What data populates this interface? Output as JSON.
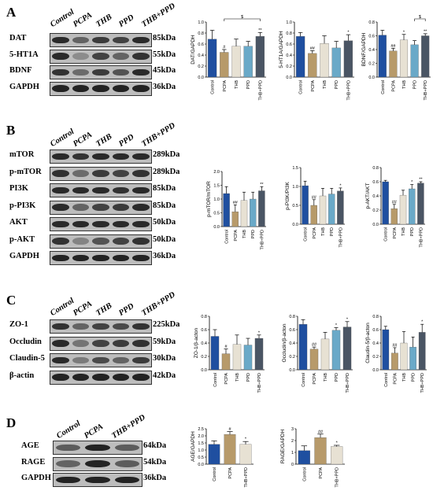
{
  "colors": [
    "#1f4fa0",
    "#b79a6a",
    "#e7e1d3",
    "#6aa9c8",
    "#4a5564"
  ],
  "panels": [
    {
      "letter": "A",
      "lanes": [
        "Control",
        "PCPA",
        "THB",
        "PPD",
        "THB+PPD"
      ],
      "blots": [
        {
          "label": "DAT",
          "kda": "85kDa",
          "intensity": [
            0.9,
            0.55,
            0.8,
            0.75,
            0.9
          ]
        },
        {
          "label": "5-HT1A",
          "kda": "55kDa",
          "intensity": [
            0.9,
            0.3,
            0.75,
            0.55,
            0.85
          ]
        },
        {
          "label": "BDNF",
          "kda": "45kDa",
          "intensity": [
            0.85,
            0.5,
            0.8,
            0.65,
            0.9
          ]
        },
        {
          "label": "GAPDH",
          "kda": "36kDa",
          "intensity": [
            0.95,
            0.95,
            0.95,
            0.95,
            0.95
          ]
        }
      ]
    },
    {
      "letter": "B",
      "lanes": [
        "Control",
        "PCPA",
        "THB",
        "PPD",
        "THB+PPD"
      ],
      "blots": [
        {
          "label": "mTOR",
          "kda": "289kDa",
          "intensity": [
            0.9,
            0.85,
            0.9,
            0.9,
            0.9
          ]
        },
        {
          "label": "p-mTOR",
          "kda": "289kDa",
          "intensity": [
            0.85,
            0.5,
            0.8,
            0.75,
            0.85
          ]
        },
        {
          "label": "PI3K",
          "kda": "85kDa",
          "intensity": [
            0.9,
            0.9,
            0.9,
            0.85,
            0.9
          ]
        },
        {
          "label": "p-PI3K",
          "kda": "85kDa",
          "intensity": [
            0.9,
            0.55,
            0.75,
            0.8,
            0.9
          ]
        },
        {
          "label": "AKT",
          "kda": "50kDa",
          "intensity": [
            0.9,
            0.9,
            0.9,
            0.9,
            0.9
          ]
        },
        {
          "label": "p-AKT",
          "kda": "50kDa",
          "intensity": [
            0.85,
            0.35,
            0.65,
            0.75,
            0.85
          ]
        },
        {
          "label": "GAPDH",
          "kda": "36kDa",
          "intensity": [
            0.95,
            0.95,
            0.95,
            0.95,
            0.95
          ]
        }
      ]
    },
    {
      "letter": "C",
      "lanes": [
        "Control",
        "PCPA",
        "THB",
        "PPD",
        "THB+PPD"
      ],
      "blots": [
        {
          "label": "ZO-1",
          "kda": "225kDa",
          "intensity": [
            0.85,
            0.55,
            0.75,
            0.7,
            0.85
          ]
        },
        {
          "label": "Occludin",
          "kda": "59kDa",
          "intensity": [
            0.9,
            0.45,
            0.75,
            0.8,
            0.85
          ]
        },
        {
          "label": "Claudin-5",
          "kda": "30kDa",
          "intensity": [
            0.9,
            0.4,
            0.7,
            0.55,
            0.8
          ]
        },
        {
          "label": "β-actin",
          "kda": "42kDa",
          "intensity": [
            0.95,
            0.95,
            0.95,
            0.95,
            0.95
          ]
        }
      ]
    },
    {
      "letter": "D",
      "lanes": [
        "Control",
        "PCPA",
        "THB+PPD"
      ],
      "blots": [
        {
          "label": "AGE",
          "kda": "64kDa",
          "intensity": [
            0.6,
            0.95,
            0.6
          ]
        },
        {
          "label": "RAGE",
          "kda": "54kDa",
          "intensity": [
            0.55,
            0.95,
            0.6
          ]
        },
        {
          "label": "GAPDH",
          "kda": "36kDa",
          "intensity": [
            0.95,
            0.95,
            0.95
          ]
        }
      ]
    }
  ],
  "chart_data": [
    {
      "type": "bar",
      "ylabel": "DAT/GAPDH",
      "categories": [
        "Control",
        "PCPA",
        "THB",
        "PPD",
        "THB+PPD"
      ],
      "values": [
        0.69,
        0.45,
        0.56,
        0.56,
        0.74
      ],
      "errors": [
        0.16,
        0.05,
        0.13,
        0.09,
        0.07
      ],
      "marks": [
        "",
        "#",
        "",
        "",
        "**"
      ],
      "ylim": [
        0,
        1.0
      ],
      "yticks": [
        "0.0",
        "0.2",
        "0.4",
        "0.6",
        "0.8",
        "1.0"
      ],
      "brackets": [
        {
          "from": 1,
          "to": 4,
          "label": "$"
        }
      ]
    },
    {
      "type": "bar",
      "ylabel": "5-HT1A/GAPDH",
      "categories": [
        "Control",
        "PCPA",
        "THB",
        "PPD",
        "THB+PPD"
      ],
      "values": [
        0.74,
        0.43,
        0.61,
        0.53,
        0.66
      ],
      "errors": [
        0.07,
        0.05,
        0.14,
        0.12,
        0.11
      ],
      "marks": [
        "",
        "##",
        "",
        "",
        "*"
      ],
      "ylim": [
        0,
        1.0
      ],
      "yticks": [
        "0.0",
        "0.2",
        "0.4",
        "0.6",
        "0.8",
        "1.0"
      ],
      "brackets": []
    },
    {
      "type": "bar",
      "ylabel": "BDNF/GAPDH",
      "categories": [
        "Control",
        "PCPA",
        "THB",
        "PPD",
        "THB+PPD"
      ],
      "values": [
        0.61,
        0.38,
        0.54,
        0.47,
        0.6
      ],
      "errors": [
        0.07,
        0.04,
        0.08,
        0.06,
        0.03
      ],
      "marks": [
        "",
        "##",
        "*",
        "",
        "**"
      ],
      "ylim": [
        0,
        0.8
      ],
      "yticks": [
        "0.0",
        "0.2",
        "0.4",
        "0.6",
        "0.8"
      ],
      "brackets": [
        {
          "from": 3,
          "to": 4,
          "label": "$"
        }
      ]
    },
    {
      "type": "bar",
      "ylabel": "p-mTOR/mTOR",
      "categories": [
        "Control",
        "PCPA",
        "THB",
        "PPD",
        "THB+PPD"
      ],
      "values": [
        1.2,
        0.54,
        0.95,
        1.0,
        1.3
      ],
      "errors": [
        0.25,
        0.25,
        0.3,
        0.25,
        0.15
      ],
      "marks": [
        "",
        "##",
        "",
        "",
        "**"
      ],
      "ylim": [
        0,
        2.0
      ],
      "yticks": [
        "0.0",
        "0.5",
        "1.0",
        "1.5",
        "2.0"
      ],
      "brackets": []
    },
    {
      "type": "bar",
      "ylabel": "p-PI3K/PI3K",
      "categories": [
        "Control",
        "PCPA",
        "THB",
        "PPD",
        "THB+PPD"
      ],
      "values": [
        1.02,
        0.5,
        0.75,
        0.8,
        0.88
      ],
      "errors": [
        0.12,
        0.15,
        0.2,
        0.15,
        0.08
      ],
      "marks": [
        "",
        "##",
        "",
        "",
        "*"
      ],
      "ylim": [
        0,
        1.5
      ],
      "yticks": [
        "0.0",
        "0.5",
        "1.0",
        "1.5"
      ],
      "brackets": []
    },
    {
      "type": "bar",
      "ylabel": "p-AKT/AKT",
      "categories": [
        "Control",
        "PCPA",
        "THB",
        "PPD",
        "THB+PPD"
      ],
      "values": [
        0.6,
        0.22,
        0.41,
        0.5,
        0.58
      ],
      "errors": [
        0.02,
        0.06,
        0.07,
        0.06,
        0.02
      ],
      "marks": [
        "",
        "##",
        "",
        "*",
        "**"
      ],
      "ylim": [
        0,
        0.8
      ],
      "yticks": [
        "0.0",
        "0.2",
        "0.4",
        "0.6",
        "0.8"
      ],
      "brackets": []
    },
    {
      "type": "bar",
      "ylabel": "ZO-1/β-acton",
      "categories": [
        "Control",
        "PCPA",
        "THB",
        "PPD",
        "THB+PPD"
      ],
      "values": [
        0.5,
        0.24,
        0.38,
        0.37,
        0.47
      ],
      "errors": [
        0.1,
        0.07,
        0.14,
        0.1,
        0.05
      ],
      "marks": [
        "",
        "#",
        "",
        "",
        "*"
      ],
      "ylim": [
        0,
        0.8
      ],
      "yticks": [
        "0.0",
        "0.2",
        "0.4",
        "0.6",
        "0.8"
      ],
      "brackets": []
    },
    {
      "type": "bar",
      "ylabel": "Occludin/β-acton",
      "categories": [
        "Control",
        "PCPA",
        "THB",
        "PPD",
        "THB+PPD"
      ],
      "values": [
        0.68,
        0.31,
        0.46,
        0.59,
        0.64
      ],
      "errors": [
        0.07,
        0.03,
        0.1,
        0.04,
        0.08
      ],
      "marks": [
        "",
        "##",
        "",
        "*",
        "*"
      ],
      "ylim": [
        0,
        0.8
      ],
      "yticks": [
        "0.0",
        "0.2",
        "0.4",
        "0.6",
        "0.8"
      ],
      "brackets": []
    },
    {
      "type": "bar",
      "ylabel": "Claudin-5/β-acton",
      "categories": [
        "Control",
        "PCPA",
        "THB",
        "PPD",
        "THB+PPD"
      ],
      "values": [
        0.6,
        0.25,
        0.4,
        0.34,
        0.56
      ],
      "errors": [
        0.05,
        0.08,
        0.17,
        0.15,
        0.12
      ],
      "marks": [
        "",
        "##",
        "",
        "",
        "*"
      ],
      "ylim": [
        0,
        0.8
      ],
      "yticks": [
        "0.0",
        "0.2",
        "0.4",
        "0.6",
        "0.8"
      ],
      "brackets": []
    },
    {
      "type": "bar",
      "ylabel": "AGE/GAPDH",
      "categories": [
        "Control",
        "PCPA",
        "THB+PPD"
      ],
      "values": [
        1.4,
        2.1,
        1.4
      ],
      "errors": [
        0.25,
        0.2,
        0.2
      ],
      "marks": [
        "",
        "#",
        "*"
      ],
      "ylim": [
        0,
        2.5
      ],
      "yticks": [
        "0.0",
        "0.5",
        "1.0",
        "1.5",
        "2.0",
        "2.5"
      ],
      "colors": [
        "#1f4fa0",
        "#b79a6a",
        "#e7e1d3"
      ],
      "brackets": []
    },
    {
      "type": "bar",
      "ylabel": "RAGE/GAPDH",
      "categories": [
        "Control",
        "PCPA",
        "THB+PPD"
      ],
      "values": [
        1.15,
        2.25,
        1.5
      ],
      "errors": [
        0.4,
        0.3,
        0.1
      ],
      "marks": [
        "",
        "##",
        "*"
      ],
      "ylim": [
        0,
        3.0
      ],
      "yticks": [
        "0",
        "1",
        "2",
        "3"
      ],
      "colors": [
        "#1f4fa0",
        "#b79a6a",
        "#e7e1d3"
      ],
      "brackets": []
    }
  ]
}
